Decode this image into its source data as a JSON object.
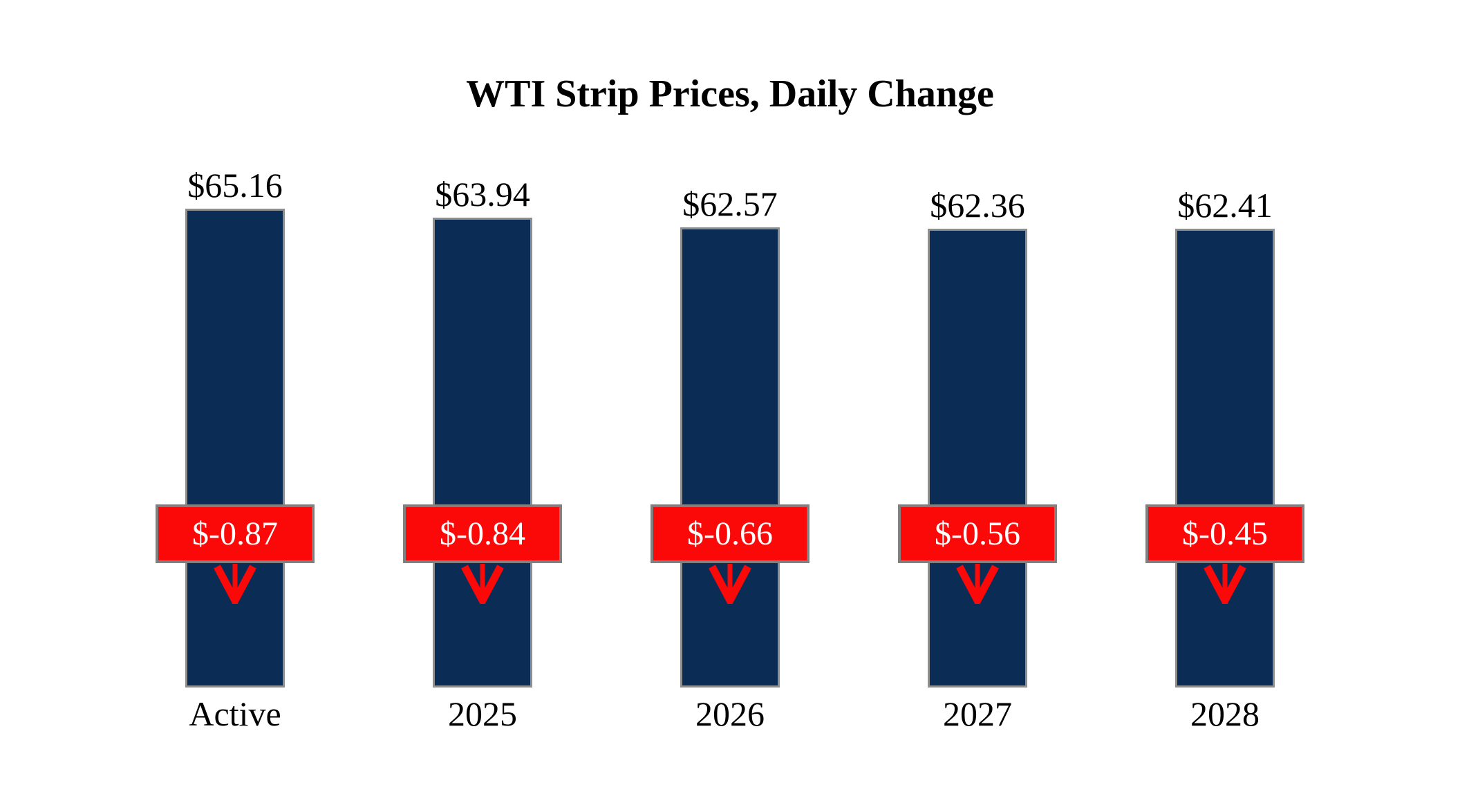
{
  "chart_data": {
    "type": "bar",
    "title": "WTI Strip Prices, Daily Change",
    "categories": [
      "Active",
      "2025",
      "2026",
      "2027",
      "2028"
    ],
    "series": [
      {
        "name": "strip_price",
        "values": [
          65.16,
          63.94,
          62.57,
          62.36,
          62.41
        ],
        "labels": [
          "$65.16",
          "$63.94",
          "$62.57",
          "$62.36",
          "$62.41"
        ]
      },
      {
        "name": "daily_change",
        "values": [
          -0.87,
          -0.84,
          -0.66,
          -0.56,
          -0.45
        ],
        "labels": [
          "$-0.87",
          "$-0.84",
          "$-0.66",
          "$-0.56",
          "$-0.45"
        ]
      }
    ],
    "ylim": [
      0,
      70
    ],
    "grid": false,
    "legend": false,
    "colors": {
      "bar_fill": "#0a2c55",
      "bar_border": "#8f8f8f",
      "badge_fill": "#fb0808",
      "badge_border": "#808080",
      "badge_text": "#ffffff",
      "arrow": "#fb0808",
      "label_text": "#000000",
      "background": "#ffffff"
    }
  }
}
